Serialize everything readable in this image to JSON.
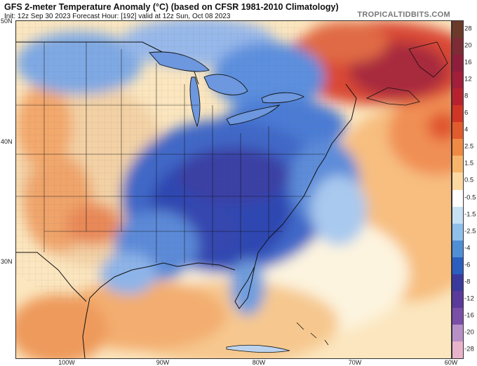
{
  "header": {
    "title": "GFS 2-meter Temperature Anomaly (°C) (based on CFSR 1981-2010 Climatology)",
    "subtitle": "Init: 12z Sep 30 2023   Forecast Hour: [192]   valid at 12z Sun, Oct 08 2023",
    "brand": "TROPICALTIDBITS.COM"
  },
  "axes": {
    "lat_labels": [
      "50N",
      "40N",
      "30N"
    ],
    "lon_labels": [
      "100W",
      "90W",
      "80W",
      "70W",
      "60W"
    ]
  },
  "colorbar": {
    "labels": [
      "28",
      "20",
      "16",
      "12",
      "8",
      "6",
      "4",
      "2.5",
      "1.5",
      "0.5",
      "-0.5",
      "-1.5",
      "-2.5",
      "-4",
      "-6",
      "-8",
      "-12",
      "-16",
      "-20",
      "-28"
    ],
    "colors": [
      "#6b3a2a",
      "#7d2b35",
      "#8e1e3c",
      "#a31e3a",
      "#b8222f",
      "#d03525",
      "#e25b2c",
      "#ef8a44",
      "#f7b56b",
      "#fbd9a0",
      "#ffffff",
      "#c7e1f4",
      "#8fc0ea",
      "#4f8fd8",
      "#2a5fc0",
      "#3a3a9e",
      "#5a3a9a",
      "#7a4fa8",
      "#b890c8",
      "#e8b4cc"
    ]
  },
  "map": {
    "variable": "2-meter temperature anomaly",
    "units": "°C",
    "colors": {
      "land": "#e8e2d2",
      "ocean_neutral": "#fdf3dc",
      "cold_core": "#2e44b0",
      "cool": "#5b8fdc",
      "warm": "#f3a05a",
      "hot": "#c23326"
    }
  }
}
